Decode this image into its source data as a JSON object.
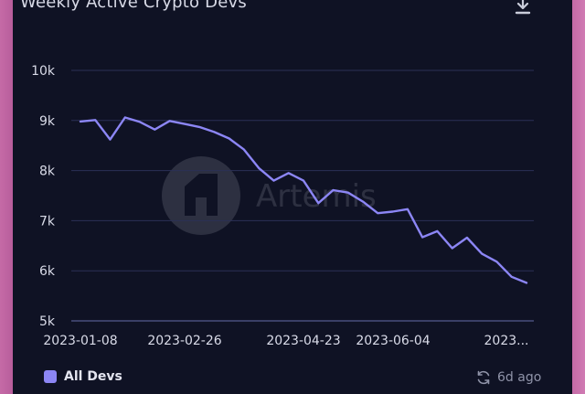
{
  "header": {
    "title": "Weekly Active Crypto Devs"
  },
  "icons": {
    "download": "download-icon",
    "refresh": "refresh-icon",
    "watermark": "artemis-logo-icon"
  },
  "watermark": {
    "text": "Artemis"
  },
  "footer": {
    "updated": "6d ago"
  },
  "colors": {
    "line": "#8c86f5",
    "grid": "#2b3056",
    "background": "#0f1224"
  },
  "chart_data": {
    "type": "line",
    "title": "Weekly Active Crypto Devs",
    "xlabel": "",
    "ylabel": "",
    "ylim": [
      5000,
      10000
    ],
    "y_ticks": [
      "5k",
      "6k",
      "7k",
      "8k",
      "9k",
      "10k"
    ],
    "x_ticks": [
      "2023-01-08",
      "2023-02-26",
      "2023-04-23",
      "2023-06-04",
      "2023..."
    ],
    "grid": true,
    "legend": "bottom-left",
    "x": [
      "2023-01-08",
      "2023-01-15",
      "2023-01-22",
      "2023-01-29",
      "2023-02-05",
      "2023-02-12",
      "2023-02-19",
      "2023-02-26",
      "2023-03-05",
      "2023-03-12",
      "2023-03-19",
      "2023-03-26",
      "2023-04-02",
      "2023-04-09",
      "2023-04-16",
      "2023-04-23",
      "2023-04-30",
      "2023-05-07",
      "2023-05-14",
      "2023-05-21",
      "2023-05-28",
      "2023-06-04",
      "2023-06-11",
      "2023-06-18",
      "2023-06-25",
      "2023-07-02",
      "2023-07-09",
      "2023-07-16",
      "2023-07-23",
      "2023-07-30",
      "2023-08-06"
    ],
    "series": [
      {
        "name": "All Devs",
        "values": [
          8980,
          9010,
          8620,
          9060,
          8970,
          8820,
          8990,
          8930,
          8870,
          8770,
          8640,
          8420,
          8050,
          7800,
          7950,
          7800,
          7350,
          7610,
          7560,
          7380,
          7150,
          7180,
          7230,
          6670,
          6790,
          6450,
          6660,
          6340,
          6180,
          5880,
          5760
        ]
      }
    ]
  }
}
